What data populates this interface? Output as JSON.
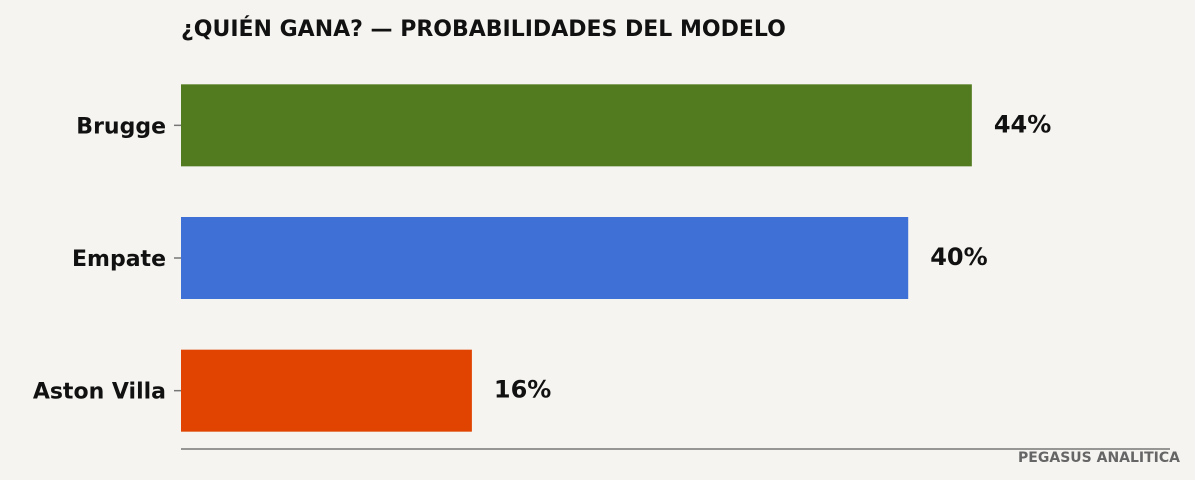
{
  "chart_data": {
    "type": "barh",
    "title": "¿QUIÉN GANA? — PROBABILIDADES DEL MODELO",
    "categories": [
      "Brugge",
      "Empate",
      "Aston Villa"
    ],
    "values": [
      43.5,
      40,
      16
    ],
    "value_labels": [
      "44%",
      "40%",
      "16%"
    ],
    "colors": [
      "#527a1f",
      "#3e70d6",
      "#e04400"
    ],
    "xlim": [
      0,
      54.4
    ],
    "source": "PEGASUS ANALITICA"
  }
}
